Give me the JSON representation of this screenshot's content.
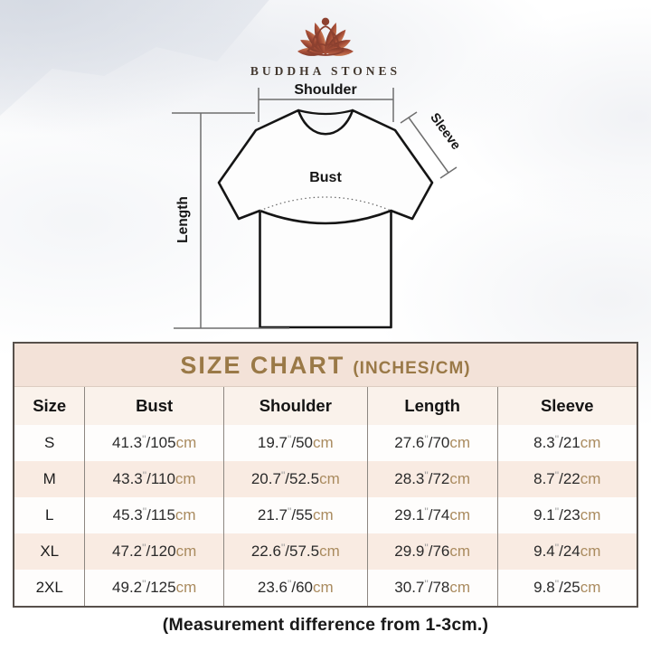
{
  "brand": {
    "name": "BUDDHA STONES",
    "logo_icon": "lotus-meditation-icon",
    "logo_color_dark": "#7e3a2b",
    "logo_color_light": "#c97a54"
  },
  "diagram": {
    "shoulder_label": "Shoulder",
    "sleeve_label": "Sleeve",
    "bust_label": "Bust",
    "length_label": "Length"
  },
  "size_chart": {
    "title": "SIZE CHART",
    "title_units": "(INCHES/CM)",
    "inch_symbol": "\"",
    "cm_label": "cm",
    "accent_gold": "#9a7947",
    "band_bg": "#f3e2d8",
    "alt_row_bg": "#f9ebe2",
    "cm_text_color": "#aa8b5f"
  },
  "chart_data": {
    "type": "table",
    "title": "SIZE CHART (INCHES/CM)",
    "columns": [
      "Size",
      "Bust",
      "Shoulder",
      "Length",
      "Sleeve"
    ],
    "units": "inches/cm",
    "rows": [
      {
        "size": "S",
        "bust": {
          "in": 41.3,
          "cm": 105
        },
        "shoulder": {
          "in": 19.7,
          "cm": 50
        },
        "length": {
          "in": 27.6,
          "cm": 70
        },
        "sleeve": {
          "in": 8.3,
          "cm": 21
        }
      },
      {
        "size": "M",
        "bust": {
          "in": 43.3,
          "cm": 110
        },
        "shoulder": {
          "in": 20.7,
          "cm": 52.5
        },
        "length": {
          "in": 28.3,
          "cm": 72
        },
        "sleeve": {
          "in": 8.7,
          "cm": 22
        }
      },
      {
        "size": "L",
        "bust": {
          "in": 45.3,
          "cm": 115
        },
        "shoulder": {
          "in": 21.7,
          "cm": 55
        },
        "length": {
          "in": 29.1,
          "cm": 74
        },
        "sleeve": {
          "in": 9.1,
          "cm": 23
        }
      },
      {
        "size": "XL",
        "bust": {
          "in": 47.2,
          "cm": 120
        },
        "shoulder": {
          "in": 22.6,
          "cm": 57.5
        },
        "length": {
          "in": 29.9,
          "cm": 76
        },
        "sleeve": {
          "in": 9.4,
          "cm": 24
        }
      },
      {
        "size": "2XL",
        "bust": {
          "in": 49.2,
          "cm": 125
        },
        "shoulder": {
          "in": 23.6,
          "cm": 60
        },
        "length": {
          "in": 30.7,
          "cm": 78
        },
        "sleeve": {
          "in": 9.8,
          "cm": 25
        }
      }
    ],
    "note": "(Measurement difference from 1-3cm.)"
  },
  "footer_note": "(Measurement difference from 1-3cm.)"
}
